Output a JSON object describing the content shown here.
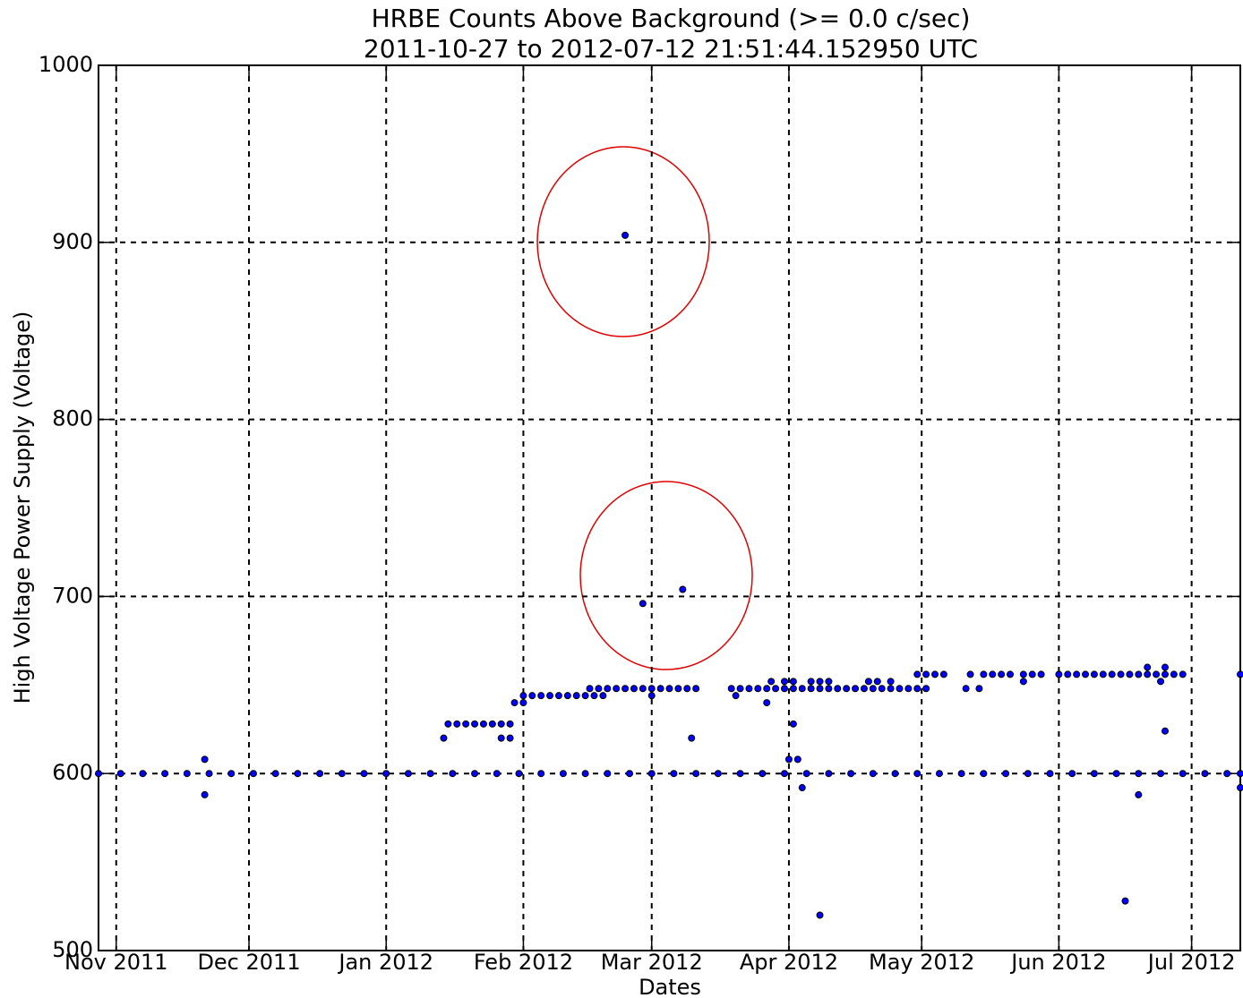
{
  "chart_data": {
    "type": "scatter",
    "title": "HRBE Counts Above Background (>= 0.0 c/sec)",
    "subtitle": "2011-10-27 to 2012-07-12 21:51:44.152950 UTC",
    "x_label": "Dates",
    "y_label": "High Voltage Power Supply (Voltage)",
    "color": "#0000ff",
    "grid": true,
    "xlim": [
      "2011-10-28",
      "2012-07-12"
    ],
    "ylim": [
      500,
      1000
    ],
    "yticks": [
      500,
      600,
      700,
      800,
      900,
      1000
    ],
    "xticks": [
      {
        "value": "2011-11-01",
        "label": "Nov 2011"
      },
      {
        "value": "2011-12-01",
        "label": "Dec 2011"
      },
      {
        "value": "2012-01-01",
        "label": "Jan 2012"
      },
      {
        "value": "2012-02-01",
        "label": "Feb 2012"
      },
      {
        "value": "2012-03-01",
        "label": "Mar 2012"
      },
      {
        "value": "2012-04-01",
        "label": "Apr 2012"
      },
      {
        "value": "2012-05-01",
        "label": "May 2012"
      },
      {
        "value": "2012-06-01",
        "label": "Jun 2012"
      },
      {
        "value": "2012-07-01",
        "label": "Jul 2012"
      }
    ],
    "x": [
      "2011-10-28",
      "2011-11-02",
      "2011-11-07",
      "2011-11-12",
      "2011-11-17",
      "2011-11-22",
      "2011-11-27",
      "2011-12-02",
      "2011-12-07",
      "2011-12-12",
      "2011-12-17",
      "2011-12-22",
      "2011-12-27",
      "2012-01-01",
      "2012-01-06",
      "2012-01-11",
      "2012-01-16",
      "2012-01-21",
      "2012-01-26",
      "2012-01-31",
      "2012-02-05",
      "2012-02-10",
      "2012-02-15",
      "2012-02-20",
      "2012-02-25",
      "2012-03-01",
      "2012-03-06",
      "2012-03-11",
      "2012-03-16",
      "2012-03-21",
      "2012-03-26",
      "2012-03-31",
      "2012-04-05",
      "2012-04-10",
      "2012-04-15",
      "2012-04-20",
      "2012-04-25",
      "2012-04-30",
      "2012-05-05",
      "2012-05-10",
      "2012-05-15",
      "2012-05-20",
      "2012-05-25",
      "2012-05-30",
      "2012-06-04",
      "2012-06-09",
      "2012-06-14",
      "2012-06-19",
      "2012-06-24",
      "2012-06-29",
      "2012-07-04",
      "2012-07-09",
      "2012-07-12",
      "2011-11-21",
      "2011-11-21",
      "2012-01-14",
      "2012-01-15",
      "2012-01-17",
      "2012-01-19",
      "2012-01-21",
      "2012-01-23",
      "2012-01-25",
      "2012-01-27",
      "2012-01-29",
      "2012-01-27",
      "2012-01-29",
      "2012-01-30",
      "2012-02-01",
      "2012-02-01",
      "2012-02-03",
      "2012-02-05",
      "2012-02-07",
      "2012-02-09",
      "2012-02-11",
      "2012-02-13",
      "2012-02-15",
      "2012-02-17",
      "2012-02-19",
      "2012-02-16",
      "2012-02-18",
      "2012-02-20",
      "2012-02-22",
      "2012-02-24",
      "2012-02-26",
      "2012-02-28",
      "2012-03-01",
      "2012-03-03",
      "2012-03-05",
      "2012-03-07",
      "2012-03-09",
      "2012-03-11",
      "2012-02-24",
      "2012-02-28",
      "2012-03-08",
      "2012-03-01",
      "2012-03-10",
      "2012-03-19",
      "2012-03-21",
      "2012-03-23",
      "2012-03-25",
      "2012-03-27",
      "2012-03-29",
      "2012-03-31",
      "2012-04-02",
      "2012-03-20",
      "2012-03-27",
      "2012-03-28",
      "2012-03-31",
      "2012-04-02",
      "2012-04-02",
      "2012-04-01",
      "2012-04-03",
      "2012-04-04",
      "2012-04-08",
      "2012-04-04",
      "2012-04-06",
      "2012-04-08",
      "2012-04-10",
      "2012-04-12",
      "2012-04-14",
      "2012-04-16",
      "2012-04-18",
      "2012-04-20",
      "2012-04-22",
      "2012-04-24",
      "2012-04-26",
      "2012-04-28",
      "2012-04-30",
      "2012-05-02",
      "2012-04-06",
      "2012-04-08",
      "2012-04-10",
      "2012-04-19",
      "2012-04-21",
      "2012-04-24",
      "2012-04-30",
      "2012-05-02",
      "2012-05-04",
      "2012-05-06",
      "2012-05-11",
      "2012-05-14",
      "2012-05-12",
      "2012-05-15",
      "2012-05-17",
      "2012-05-19",
      "2012-05-21",
      "2012-05-24",
      "2012-05-24",
      "2012-05-26",
      "2012-05-28",
      "2012-06-01",
      "2012-06-03",
      "2012-06-05",
      "2012-06-07",
      "2012-06-09",
      "2012-06-11",
      "2012-06-13",
      "2012-06-15",
      "2012-06-17",
      "2012-06-19",
      "2012-06-21",
      "2012-06-23",
      "2012-06-25",
      "2012-06-27",
      "2012-06-29",
      "2012-06-16",
      "2012-06-19",
      "2012-06-21",
      "2012-06-25",
      "2012-06-24",
      "2012-06-25",
      "2012-07-12",
      "2012-07-12"
    ],
    "values": [
      600,
      600,
      600,
      600,
      600,
      600,
      600,
      600,
      600,
      600,
      600,
      600,
      600,
      600,
      600,
      600,
      600,
      600,
      600,
      600,
      600,
      600,
      600,
      600,
      600,
      600,
      600,
      600,
      600,
      600,
      600,
      600,
      600,
      600,
      600,
      600,
      600,
      600,
      600,
      600,
      600,
      600,
      600,
      600,
      600,
      600,
      600,
      600,
      600,
      600,
      600,
      600,
      600,
      608,
      588,
      620,
      628,
      628,
      628,
      628,
      628,
      628,
      628,
      628,
      620,
      620,
      640,
      640,
      644,
      644,
      644,
      644,
      644,
      644,
      644,
      644,
      644,
      644,
      648,
      648,
      648,
      648,
      648,
      648,
      648,
      648,
      648,
      648,
      648,
      648,
      648,
      904,
      696,
      704,
      644,
      620,
      648,
      648,
      648,
      648,
      648,
      648,
      648,
      648,
      644,
      640,
      652,
      652,
      652,
      628,
      608,
      608,
      592,
      520,
      648,
      648,
      648,
      648,
      648,
      648,
      648,
      648,
      648,
      648,
      648,
      648,
      648,
      648,
      648,
      652,
      652,
      652,
      652,
      652,
      652,
      656,
      656,
      656,
      656,
      648,
      648,
      656,
      656,
      656,
      656,
      656,
      652,
      656,
      656,
      656,
      656,
      656,
      656,
      656,
      656,
      656,
      656,
      656,
      656,
      656,
      656,
      656,
      656,
      656,
      656,
      528,
      588,
      660,
      660,
      652,
      624,
      656,
      592
    ]
  }
}
